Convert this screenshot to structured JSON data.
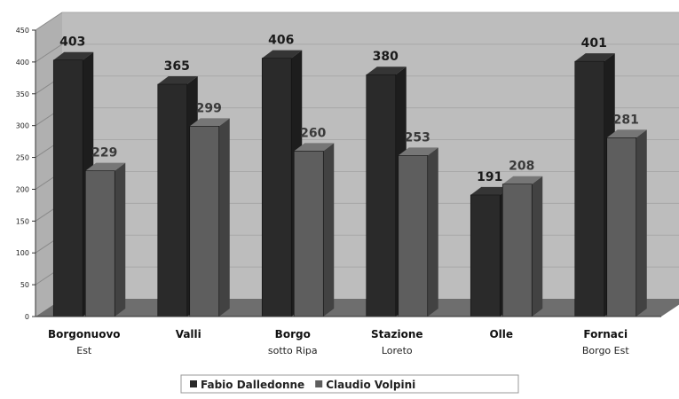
{
  "colors": {
    "series_a": "#2a2a2a",
    "series_b": "#5e5e5e",
    "wall": "#bdbdbd",
    "floor": "#6e6e6e",
    "background": "#ffffff"
  },
  "chart_data": {
    "type": "bar",
    "categories": [
      "Borgonuovo Est",
      "Valli",
      "Borgo sotto Ripa",
      "Stazione Loreto",
      "Olle",
      "Fornaci Borgo Est"
    ],
    "category_lines": [
      [
        "Borgonuovo",
        "Est"
      ],
      [
        "Valli",
        ""
      ],
      [
        "Borgo",
        "sotto Ripa"
      ],
      [
        "Stazione",
        "Loreto"
      ],
      [
        "Olle",
        ""
      ],
      [
        "Fornaci",
        "Borgo Est"
      ]
    ],
    "series": [
      {
        "name": "Fabio Dalledonne",
        "values": [
          403,
          365,
          406,
          380,
          191,
          401
        ]
      },
      {
        "name": "Claudio Volpini",
        "values": [
          229,
          299,
          260,
          253,
          208,
          281
        ]
      }
    ],
    "value_labels": [
      [
        "403",
        "365",
        "406",
        "380",
        "191",
        "401"
      ],
      [
        "229",
        "299",
        "260",
        "253",
        "208",
        "281"
      ]
    ],
    "yticks": [
      "0",
      "50",
      "100",
      "150",
      "200",
      "250",
      "300",
      "350",
      "400",
      "450"
    ],
    "ylim": [
      0,
      450
    ],
    "legend_position": "bottom",
    "title": "",
    "xlabel": "",
    "ylabel": ""
  }
}
